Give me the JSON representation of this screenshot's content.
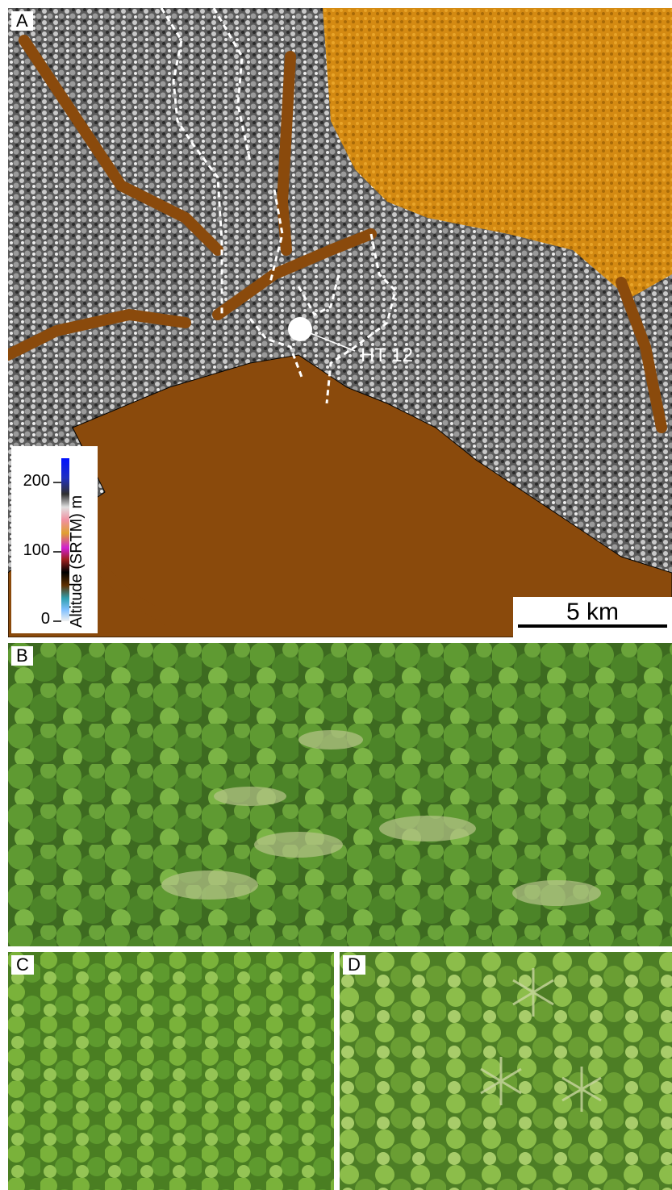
{
  "figure": {
    "panels": [
      {
        "letter": "A"
      },
      {
        "letter": "B"
      },
      {
        "letter": "C"
      },
      {
        "letter": "D"
      }
    ],
    "map": {
      "site_label": "HT 12",
      "scale_bar_label": "5 km",
      "legend": {
        "title": "Altitude (SRTM) m",
        "ticks": [
          "200",
          "100",
          "0"
        ]
      }
    },
    "colors": {
      "lowland": "#8a4a0c",
      "upland_gray": "#b8b8b8",
      "plateau_orange": "#d98a10",
      "canopy_green": "#4f8a2a"
    }
  }
}
